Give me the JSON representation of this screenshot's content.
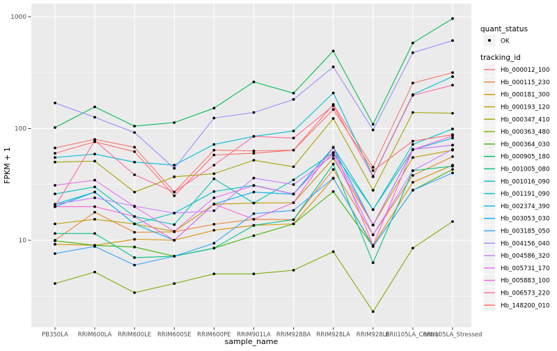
{
  "figure_title": "",
  "panel": {
    "bg_color": "#EBEBEB",
    "grid_color": "#FFFFFF",
    "point_color": "#000000",
    "tick_color": "#333333",
    "tick_label_color": "#4D4D4D",
    "title_color": "#000000",
    "legend_key_bg": "#F2F2F2"
  },
  "y_axis": {
    "title": "FPKM + 1",
    "tick_labels": [
      "1000",
      "100",
      "10"
    ],
    "tick_values": [
      1000,
      100,
      10
    ],
    "minor_values": [
      316.23,
      31.623,
      3.1623
    ],
    "scale": "log10"
  },
  "x_axis": {
    "title": "sample_name"
  },
  "legend": {
    "quant_status": {
      "title": "quant_status",
      "items": [
        {
          "label": "OK",
          "shape": "point"
        }
      ]
    },
    "tracking_id_title": "tracking_id"
  },
  "chart_data": {
    "type": "line",
    "title": "",
    "xlabel": "sample_name",
    "ylabel": "FPKM + 1",
    "yscale": "log10",
    "ylim": [
      2,
      1000
    ],
    "grid": true,
    "legend_position": "right",
    "categories": [
      "PB350LA",
      "RRIM600LA",
      "RRIM600LE",
      "RRIM600SE",
      "RRIM600PE",
      "RRIM901LA",
      "RRIM928BA",
      "RRIM928LA",
      "RRIM928LE",
      "RRII105LA_Control",
      "RRII105LA_Stressed"
    ],
    "series": [
      {
        "name": "Hb_000012_100",
        "color": "#F8766D",
        "values": [
          67,
          80,
          68,
          27,
          64,
          63,
          64,
          164,
          45,
          255,
          316
        ]
      },
      {
        "name": "Hb_000115_230",
        "color": "#EA8331",
        "values": [
          10,
          17.8,
          11.8,
          11.9,
          13.9,
          15.4,
          15.3,
          43,
          11.2,
          38,
          56
        ]
      },
      {
        "name": "Hb_000181_300",
        "color": "#D89000",
        "values": [
          9.2,
          9.0,
          10.2,
          10,
          12.3,
          13.6,
          14,
          35.8,
          9.0,
          33,
          47
        ]
      },
      {
        "name": "Hb_000193_120",
        "color": "#C09B00",
        "values": [
          14,
          15.4,
          14,
          12,
          21,
          21.5,
          21.7,
          54,
          13.7,
          55,
          64
        ]
      },
      {
        "name": "Hb_000347_410",
        "color": "#A3A500",
        "values": [
          50,
          51,
          27,
          37,
          39.4,
          52,
          45.5,
          123,
          28,
          139,
          137
        ]
      },
      {
        "name": "Hb_000363_480",
        "color": "#7CAE00",
        "values": [
          4.1,
          5.2,
          3.4,
          4.1,
          5.0,
          5.0,
          5.4,
          7.9,
          2.3,
          8.5,
          14.7
        ]
      },
      {
        "name": "Hb_000364_030",
        "color": "#39B600",
        "values": [
          9.9,
          9.0,
          8.7,
          7.2,
          8.5,
          11,
          14,
          27.3,
          8.8,
          28,
          43
        ]
      },
      {
        "name": "Hb_000905_180",
        "color": "#00BB4E",
        "values": [
          102,
          156,
          105,
          113,
          152,
          261,
          207,
          493,
          109,
          582,
          962
        ]
      },
      {
        "name": "Hb_001005_080",
        "color": "#00C087",
        "values": [
          11.5,
          11.5,
          7.0,
          7.2,
          8.5,
          13.6,
          15.3,
          48,
          6.3,
          42,
          46
        ]
      },
      {
        "name": "Hb_001016_090",
        "color": "#00C0B8",
        "values": [
          26,
          30,
          16.3,
          13.8,
          35.5,
          21.5,
          34.7,
          61,
          18.8,
          65,
          71
        ]
      },
      {
        "name": "Hb_001191_090",
        "color": "#00BFC4",
        "values": [
          21,
          27,
          14,
          17.5,
          27.3,
          31,
          26,
          68,
          18.8,
          72,
          99
        ]
      },
      {
        "name": "Hb_002374_390",
        "color": "#00BCD8",
        "values": [
          55,
          59,
          50,
          47,
          72,
          85,
          95,
          208,
          37.4,
          201,
          291
        ]
      },
      {
        "name": "Hb_003053_030",
        "color": "#00B0F6",
        "values": [
          20,
          27,
          14,
          10,
          21.1,
          27,
          25.8,
          67.7,
          13.7,
          64.6,
          82
        ]
      },
      {
        "name": "Hb_003185_050",
        "color": "#35A2FF",
        "values": [
          7.6,
          8.8,
          6.0,
          7.2,
          9.4,
          17.3,
          18.5,
          36,
          8.8,
          28,
          40
        ]
      },
      {
        "name": "Hb_004156_040",
        "color": "#9590FF",
        "values": [
          169,
          126,
          92,
          44,
          124,
          139,
          182,
          356,
          97,
          476,
          611
        ]
      },
      {
        "name": "Hb_004586_320",
        "color": "#C77CFF",
        "values": [
          21,
          24,
          20.2,
          17.5,
          18.4,
          36,
          31.5,
          57.5,
          11.2,
          42,
          65
        ]
      },
      {
        "name": "Hb_005731_170",
        "color": "#E76BF3",
        "values": [
          31,
          34.5,
          20,
          12,
          24,
          30.8,
          26,
          60.6,
          13.7,
          65,
          71
        ]
      },
      {
        "name": "Hb_005883_100",
        "color": "#FA62DB",
        "values": [
          20,
          20,
          16.3,
          10,
          21.1,
          15.4,
          21.7,
          67.7,
          9,
          64.6,
          86
        ]
      },
      {
        "name": "Hb_006573_220",
        "color": "#FF689E",
        "values": [
          20,
          78,
          38.5,
          27,
          47,
          85,
          82,
          160,
          37,
          198,
          244
        ]
      },
      {
        "name": "Hb_148200_010",
        "color": "#FF6C67",
        "values": [
          60,
          76,
          62,
          25,
          58,
          60,
          64,
          148,
          42,
          77,
          88
        ]
      }
    ]
  }
}
